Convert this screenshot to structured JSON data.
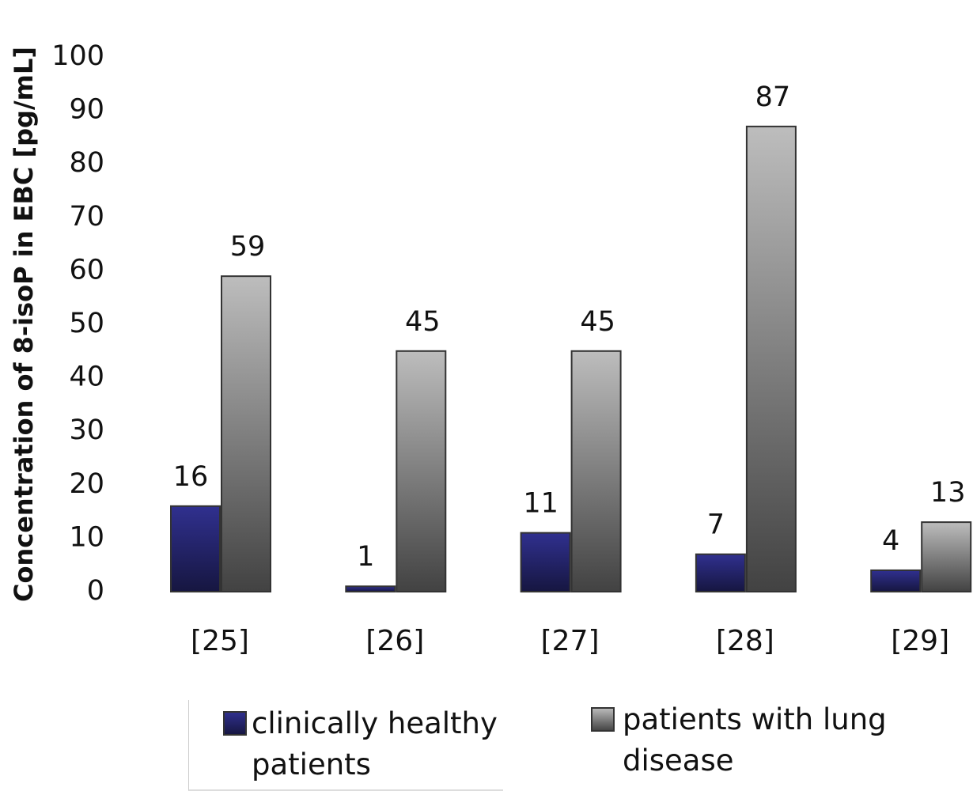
{
  "chart_data": {
    "type": "bar",
    "y_label": "Concentration of 8-isoP in EBC [pg/mL]",
    "categories": [
      "[25]",
      "[26]",
      "[27]",
      "[28]",
      "[29]"
    ],
    "series": [
      {
        "name": "clinically healthy patients",
        "color": "#30308f",
        "values": [
          16,
          1,
          11,
          7,
          4
        ]
      },
      {
        "name": "patients with lung disease",
        "color": "#bdbdbd",
        "values": [
          59,
          45,
          45,
          87,
          13
        ]
      }
    ],
    "ylim": [
      0,
      100
    ],
    "yticks": [
      0,
      10,
      20,
      30,
      40,
      50,
      60,
      70,
      80,
      90,
      100
    ],
    "grid": false,
    "legend": "bottom"
  }
}
